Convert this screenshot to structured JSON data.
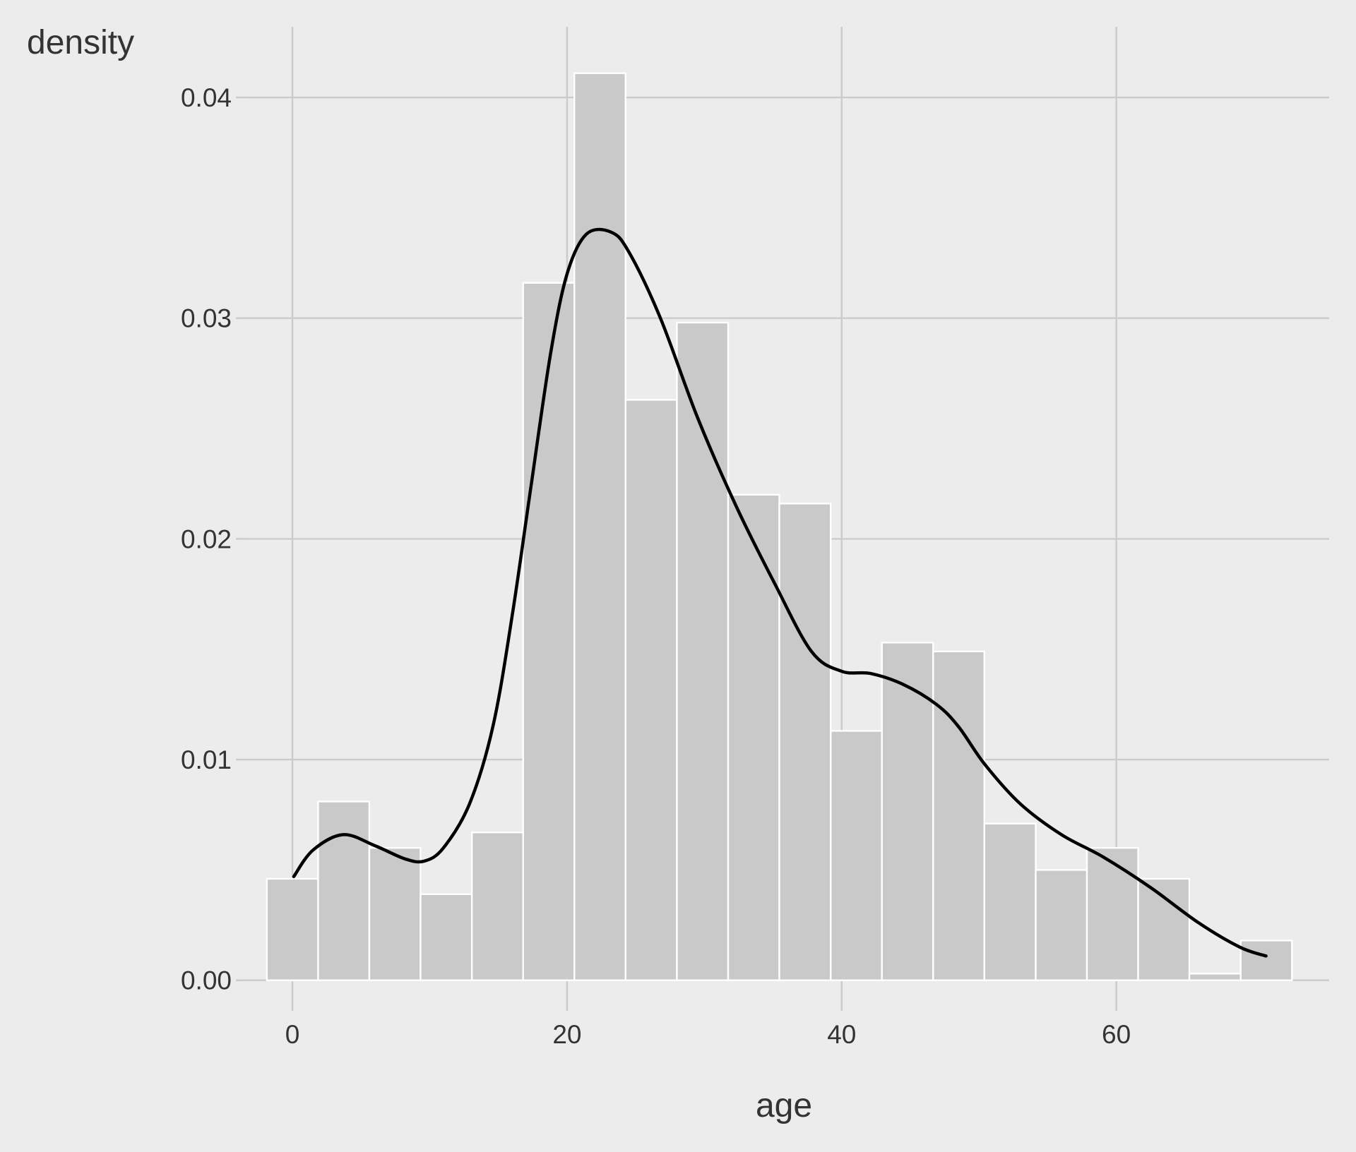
{
  "chart_data": {
    "type": "bar",
    "subtype": "histogram-with-density-curve",
    "xlabel": "age",
    "ylabel": "density",
    "xlim": [
      -3.5,
      75.5
    ],
    "ylim": [
      -0.001,
      0.0432
    ],
    "x_ticks": [
      0,
      20,
      40,
      60
    ],
    "x_tick_labels": [
      "0",
      "20",
      "40",
      "60"
    ],
    "y_ticks": [
      0,
      0.01,
      0.02,
      0.03,
      0.04
    ],
    "y_tick_labels": [
      "0.00",
      "0.01",
      "0.02",
      "0.03",
      "0.04"
    ],
    "grid": true,
    "legend": "none",
    "bins": [
      {
        "x0": -1.86,
        "x1": 1.87,
        "value": 0.0046
      },
      {
        "x0": 1.87,
        "x1": 5.6,
        "value": 0.0081
      },
      {
        "x0": 5.6,
        "x1": 9.33,
        "value": 0.006
      },
      {
        "x0": 9.33,
        "x1": 13.07,
        "value": 0.0039
      },
      {
        "x0": 13.07,
        "x1": 16.8,
        "value": 0.0067
      },
      {
        "x0": 16.8,
        "x1": 20.53,
        "value": 0.0316
      },
      {
        "x0": 20.53,
        "x1": 24.26,
        "value": 0.0411
      },
      {
        "x0": 24.26,
        "x1": 28.0,
        "value": 0.0263
      },
      {
        "x0": 28.0,
        "x1": 31.73,
        "value": 0.0298
      },
      {
        "x0": 31.73,
        "x1": 35.46,
        "value": 0.022
      },
      {
        "x0": 35.46,
        "x1": 39.2,
        "value": 0.0216
      },
      {
        "x0": 39.2,
        "x1": 42.93,
        "value": 0.0113
      },
      {
        "x0": 42.93,
        "x1": 46.66,
        "value": 0.0153
      },
      {
        "x0": 46.66,
        "x1": 50.39,
        "value": 0.0149
      },
      {
        "x0": 50.39,
        "x1": 54.13,
        "value": 0.0071
      },
      {
        "x0": 54.13,
        "x1": 57.86,
        "value": 0.005
      },
      {
        "x0": 57.86,
        "x1": 61.59,
        "value": 0.006
      },
      {
        "x0": 61.59,
        "x1": 65.32,
        "value": 0.0046
      },
      {
        "x0": 65.32,
        "x1": 69.06,
        "value": 0.0003
      },
      {
        "x0": 69.06,
        "x1": 72.79,
        "value": 0.0018
      }
    ],
    "density_curve": {
      "x": [
        0.1,
        1.5,
        3.7,
        6.0,
        8.2,
        9.6,
        11.0,
        12.9,
        14.6,
        16.0,
        17.4,
        18.8,
        20.0,
        21.4,
        23.2,
        24.5,
        26.8,
        29.5,
        32.3,
        35.1,
        37.8,
        40.0,
        42.1,
        44.5,
        46.9,
        48.5,
        50.4,
        53.0,
        56.0,
        59.0,
        62.5,
        66.0,
        69.0,
        70.9
      ],
      "y": [
        0.0047,
        0.0059,
        0.0066,
        0.0061,
        0.0055,
        0.0054,
        0.006,
        0.008,
        0.0115,
        0.0165,
        0.0225,
        0.0284,
        0.032,
        0.0338,
        0.0339,
        0.033,
        0.03,
        0.0255,
        0.0215,
        0.018,
        0.0149,
        0.014,
        0.0139,
        0.0134,
        0.0125,
        0.0115,
        0.0098,
        0.008,
        0.0066,
        0.0056,
        0.0042,
        0.0026,
        0.0015,
        0.0011
      ]
    },
    "colors": {
      "background": "#ececec",
      "grid": "#cbcbcb",
      "bar_fill": "#c9c9c9",
      "bar_stroke": "#ffffff",
      "curve": "#000000",
      "text": "#333333"
    }
  }
}
